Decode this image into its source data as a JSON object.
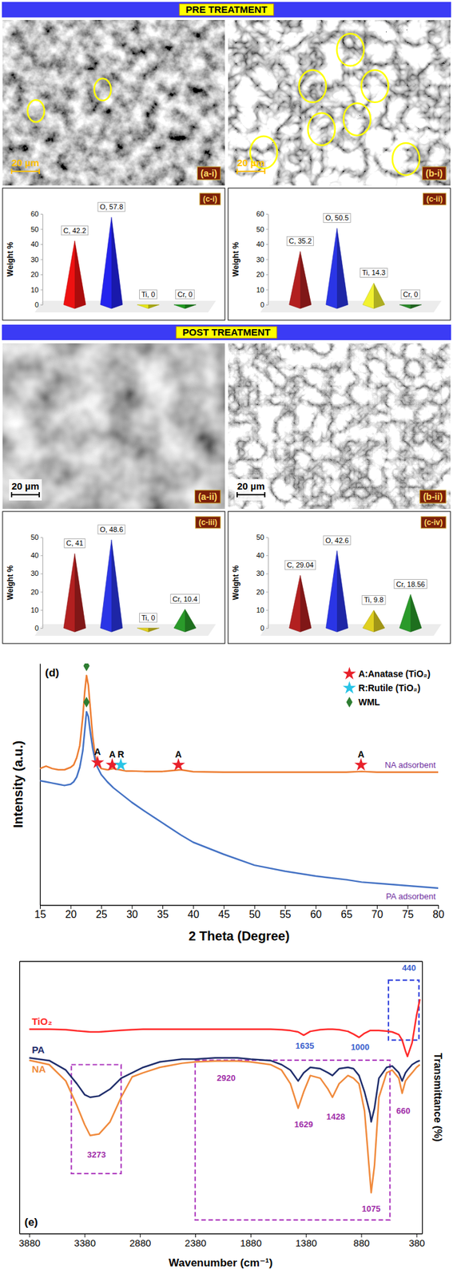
{
  "banners": [
    "PRE TREATMENT",
    "POST TREATMENT"
  ],
  "images": [
    {
      "label": "(a-i)",
      "scale_bar": "20 µm"
    },
    {
      "label": "(b-i)",
      "scale_bar": "20 µm"
    },
    {
      "label": "(a-ii)",
      "scale_bar": "20 µm"
    },
    {
      "label": "(b-ii)",
      "scale_bar": "20 µm"
    }
  ],
  "chart_data": [
    {
      "type": "bar",
      "title": "(c-i)",
      "ylabel": "Weight %",
      "categories": [
        "C",
        "O",
        "Ti",
        "Cr"
      ],
      "values": [
        42.2,
        57.8,
        0,
        0
      ],
      "value_labels": [
        "C, 42.2",
        "O, 57.8",
        "Ti, 0",
        "Cr, 0"
      ],
      "colors": [
        "#ee1111",
        "#2323ee",
        "#e6e619",
        "#1f9a1f"
      ],
      "ylim": [
        0,
        60
      ],
      "yticks": [
        0,
        10,
        20,
        30,
        40,
        50,
        60
      ],
      "data_labels": true,
      "grid": false,
      "tick_labels": "y"
    },
    {
      "type": "bar",
      "title": "(c-ii)",
      "ylabel": "Weight %",
      "categories": [
        "C",
        "O",
        "Ti",
        "Cr"
      ],
      "values": [
        35.2,
        50.5,
        14.3,
        0
      ],
      "value_labels": [
        "C, 35.2",
        "O, 50.5",
        "Ti, 14.3",
        "Cr, 0"
      ],
      "colors": [
        "#b22020",
        "#2a35e6",
        "#f2f230",
        "#2a8a2a"
      ],
      "ylim": [
        0,
        60
      ],
      "yticks": [
        0,
        10,
        20,
        30,
        40,
        50,
        60
      ],
      "data_labels": true,
      "grid": false,
      "tick_labels": "y"
    },
    {
      "type": "bar",
      "title": "(c-iii)",
      "ylabel": "Weight %",
      "categories": [
        "C",
        "O",
        "Ti",
        "Cr"
      ],
      "values": [
        41,
        48.6,
        0,
        10.4
      ],
      "value_labels": [
        "C, 41",
        "O, 48.6",
        "Ti, 0",
        "Cr, 10.4"
      ],
      "colors": [
        "#b22020",
        "#2a35e6",
        "#e0d020",
        "#2a9a2a"
      ],
      "ylim": [
        0,
        50
      ],
      "yticks": [
        0,
        10,
        20,
        30,
        40,
        50
      ],
      "data_labels": true,
      "grid": false,
      "tick_labels": "y"
    },
    {
      "type": "bar",
      "title": "(c-iv)",
      "ylabel": "Weight %",
      "categories": [
        "C",
        "O",
        "Ti",
        "Cr"
      ],
      "values": [
        29.04,
        42.6,
        9.8,
        18.56
      ],
      "value_labels": [
        "C, 29.04",
        "O, 42.6",
        "Ti, 9.8",
        "Cr, 18.56"
      ],
      "colors": [
        "#b22020",
        "#2a35e6",
        "#e0d020",
        "#2a9a2a"
      ],
      "ylim": [
        0,
        50
      ],
      "yticks": [
        0,
        10,
        20,
        30,
        40,
        50
      ],
      "data_labels": true,
      "grid": false,
      "tick_labels": "y"
    },
    {
      "type": "line",
      "title": "(d)",
      "xlabel": "2 Theta (Degree)",
      "ylabel": "Intensity (a.u.)",
      "x": [
        15,
        16,
        17,
        18,
        19,
        20,
        20.5,
        21,
        21.5,
        22,
        22.3,
        22.6,
        22.9,
        23.2,
        23.6,
        24,
        24.4,
        25,
        26,
        27,
        28,
        29,
        30,
        32,
        35,
        38,
        40,
        45,
        50,
        55,
        60,
        65,
        67.5,
        70,
        75,
        80
      ],
      "series": [
        {
          "name": "NA adsorbent",
          "color": "#ed7d31",
          "values": [
            56.5,
            57.5,
            56.5,
            56,
            56,
            57,
            58,
            61,
            66,
            78,
            88,
            95,
            91,
            82,
            70,
            62,
            58.5,
            56.5,
            56,
            56.5,
            56,
            55.5,
            55.5,
            55.3,
            55.3,
            56,
            55.2,
            55,
            55,
            55,
            55,
            55,
            55.3,
            55,
            55,
            55
          ]
        },
        {
          "name": "PA adsorbent",
          "color": "#4472c4",
          "values": [
            51.5,
            51,
            50.5,
            50,
            49.5,
            50,
            51,
            53,
            57,
            64,
            72,
            80,
            78,
            72,
            65,
            60,
            57,
            54,
            51,
            48.5,
            46.5,
            44.5,
            42.5,
            39,
            34,
            29,
            26,
            21,
            16.5,
            14,
            12,
            10.5,
            9.5,
            9,
            8,
            7
          ]
        }
      ],
      "xlim": [
        15,
        80
      ],
      "xticks": [
        15,
        20,
        25,
        30,
        35,
        40,
        45,
        50,
        55,
        60,
        65,
        70,
        75,
        80
      ],
      "ylim": [
        0,
        100
      ],
      "tick_labels": "x",
      "legend": "upper right",
      "peak_types": [
        {
          "name": "A:Anatase (TiO₂)",
          "marker": "star",
          "color": "#e8202a"
        },
        {
          "name": "R:Rutile (TiO₂)",
          "marker": "star",
          "color": "#29c4e6"
        },
        {
          "name": "WML",
          "marker": "diamond",
          "color": "#2e7d32"
        }
      ],
      "annotations": [
        {
          "text": "A",
          "x": 24.4,
          "y": 59,
          "marker": "star",
          "color": "#e8202a"
        },
        {
          "text": "A",
          "x": 26.8,
          "y": 58,
          "marker": "star",
          "color": "#e8202a"
        },
        {
          "text": "R",
          "x": 28.2,
          "y": 58,
          "marker": "star",
          "color": "#29c4e6"
        },
        {
          "text": "A",
          "x": 37.6,
          "y": 58,
          "marker": "star",
          "color": "#e8202a"
        },
        {
          "text": "A",
          "x": 67.4,
          "y": 58,
          "marker": "star",
          "color": "#e8202a"
        },
        {
          "x": 22.6,
          "y": 99,
          "marker": "diamond",
          "color": "#2e7d32"
        },
        {
          "x": 22.6,
          "y": 84,
          "marker": "diamond",
          "color": "#2e7d32"
        }
      ]
    },
    {
      "type": "line",
      "title": "(e)",
      "xlabel": "Wavenumber (cm⁻¹)",
      "ylabel": "Transmittance (%)",
      "x": [
        3880,
        3700,
        3550,
        3450,
        3380,
        3330,
        3250,
        3150,
        3050,
        2950,
        2850,
        2700,
        2500,
        2380,
        2200,
        2000,
        1880,
        1700,
        1600,
        1520,
        1450,
        1400,
        1340,
        1250,
        1180,
        1140,
        1080,
        1000,
        950,
        900,
        850,
        800,
        790,
        760,
        720,
        650,
        600,
        540,
        510,
        480,
        462,
        420,
        380,
        350
      ],
      "series": [
        {
          "name": "TiO₂",
          "color": "#ff2a2a",
          "values": [
            75,
            75,
            74.8,
            74.4,
            74.2,
            74,
            74,
            74.3,
            74.6,
            74.8,
            75,
            75,
            75,
            75,
            75,
            75,
            75,
            75,
            74.8,
            74.5,
            74,
            72.8,
            74.2,
            74.8,
            75,
            75,
            74.8,
            74.2,
            73.2,
            72,
            73.5,
            74.5,
            74.5,
            74.5,
            74.5,
            74.3,
            74,
            73,
            71,
            67,
            65,
            70,
            80,
            86
          ]
        },
        {
          "name": "PA",
          "color": "#1f2d6b",
          "values": [
            64.5,
            63.5,
            60,
            55,
            51,
            50,
            50.5,
            53,
            57,
            59,
            61,
            63,
            64,
            64,
            64.5,
            64.5,
            64,
            63.5,
            62,
            60,
            56,
            59,
            61,
            60.5,
            59,
            58,
            60.5,
            61,
            60.5,
            58,
            52,
            44,
            41,
            46,
            57,
            61,
            61.5,
            59,
            56,
            59,
            60,
            62,
            63,
            63.5
          ]
        },
        {
          "name": "NA",
          "color": "#f08a3c",
          "values": [
            63.6,
            62,
            56,
            47,
            40,
            36,
            36.5,
            41,
            50,
            57.5,
            59,
            61,
            62.5,
            63,
            63.3,
            63.3,
            63,
            62,
            60,
            55,
            46,
            52,
            58,
            57,
            53,
            50,
            55,
            58,
            57,
            55,
            45,
            20,
            15,
            25,
            50,
            59,
            60,
            57,
            51.5,
            56,
            57,
            59,
            61,
            62
          ]
        }
      ],
      "xlim": [
        3970,
        330
      ],
      "xticks": [
        3880,
        3380,
        2880,
        2380,
        1880,
        1380,
        880,
        380
      ],
      "ylim": [
        0,
        100
      ],
      "tick_labels": "x",
      "annotations": [
        {
          "text": "3273",
          "x": 3273,
          "y": 29,
          "color": "#a02da8"
        },
        {
          "text": "2920",
          "x": 2100,
          "y": 57,
          "color": "#a02da8"
        },
        {
          "text": "1629",
          "x": 1400,
          "y": 40,
          "color": "#a02da8"
        },
        {
          "text": "1428",
          "x": 1110,
          "y": 43,
          "color": "#a02da8"
        },
        {
          "text": "1075",
          "x": 790,
          "y": 9,
          "color": "#a02da8"
        },
        {
          "text": "660",
          "x": 500,
          "y": 45,
          "color": "#a02da8"
        },
        {
          "text": "1635",
          "x": 1390,
          "y": 69,
          "color": "#3a5fcd"
        },
        {
          "text": "1000",
          "x": 890,
          "y": 68.5,
          "color": "#3a5fcd"
        },
        {
          "text": "440",
          "x": 448,
          "y": 97.5,
          "color": "#3a5fcd"
        }
      ],
      "highlight_ranges": [
        {
          "x": [
            3500,
            3050
          ],
          "y": [
            22,
            62
          ],
          "color": "#b040c0"
        },
        {
          "x": [
            2381,
            620
          ],
          "y": [
            5,
            63.6
          ],
          "color": "#b040c0"
        },
        {
          "x": [
            634,
            358
          ],
          "y": [
            71,
            93
          ],
          "color": "#3344dd"
        }
      ]
    }
  ]
}
